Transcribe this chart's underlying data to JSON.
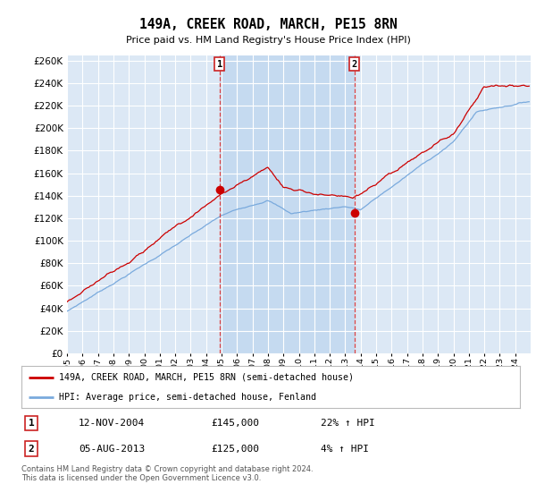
{
  "title": "149A, CREEK ROAD, MARCH, PE15 8RN",
  "subtitle": "Price paid vs. HM Land Registry's House Price Index (HPI)",
  "ylim": [
    0,
    265000
  ],
  "yticks": [
    0,
    20000,
    40000,
    60000,
    80000,
    100000,
    120000,
    140000,
    160000,
    180000,
    200000,
    220000,
    240000,
    260000
  ],
  "background_color": "#ffffff",
  "plot_background": "#dce8f5",
  "grid_color": "#ffffff",
  "red_line_color": "#cc0000",
  "blue_line_color": "#7aaadd",
  "shade_color": "#c5daf0",
  "vline_color": "#dd4444",
  "marker1_date_x": 2004.87,
  "marker1_price": 145000,
  "marker2_date_x": 2013.59,
  "marker2_price": 125000,
  "legend_label_red": "149A, CREEK ROAD, MARCH, PE15 8RN (semi-detached house)",
  "legend_label_blue": "HPI: Average price, semi-detached house, Fenland",
  "table_row1": [
    "1",
    "12-NOV-2004",
    "£145,000",
    "22% ↑ HPI"
  ],
  "table_row2": [
    "2",
    "05-AUG-2013",
    "£125,000",
    "4% ↑ HPI"
  ],
  "footnote": "Contains HM Land Registry data © Crown copyright and database right 2024.\nThis data is licensed under the Open Government Licence v3.0.",
  "xmin": 1995,
  "xmax": 2025
}
